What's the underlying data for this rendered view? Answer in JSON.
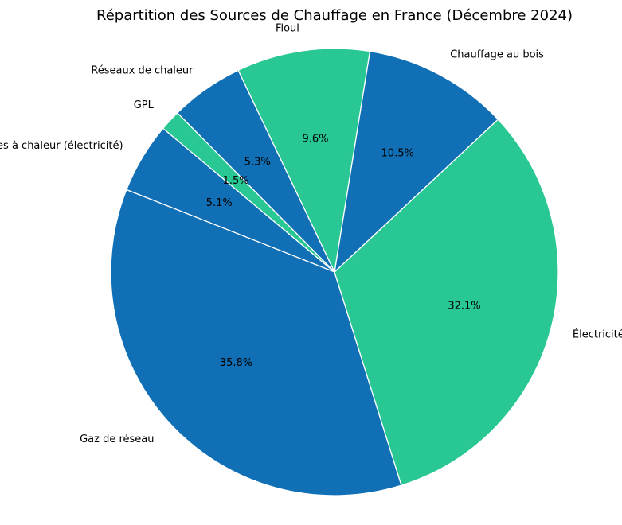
{
  "chart_data": {
    "type": "pie",
    "title": "Répartition des Sources de Chauffage en France (Décembre 2024)",
    "start_angle_deg": 140,
    "direction": "counterclockwise",
    "colors": [
      "#1170b5",
      "#28c793"
    ],
    "slices": [
      {
        "label": "Pompes à chaleur (électricité)",
        "value": 5.1,
        "pct_label": "5.1%",
        "color": "#1170b5"
      },
      {
        "label": "Gaz de réseau",
        "value": 35.8,
        "pct_label": "35.8%",
        "color": "#1170b5"
      },
      {
        "label": "Électricité",
        "value": 32.1,
        "pct_label": "32.1%",
        "color": "#28c793"
      },
      {
        "label": "Chauffage au bois",
        "value": 10.5,
        "pct_label": "10.5%",
        "color": "#1170b5"
      },
      {
        "label": "Fioul",
        "value": 9.6,
        "pct_label": "9.6%",
        "color": "#28c793"
      },
      {
        "label": "Réseaux de chaleur",
        "value": 5.3,
        "pct_label": "5.3%",
        "color": "#1170b5"
      },
      {
        "label": "GPL",
        "value": 1.5,
        "pct_label": "1.5%",
        "color": "#28c793"
      }
    ]
  }
}
